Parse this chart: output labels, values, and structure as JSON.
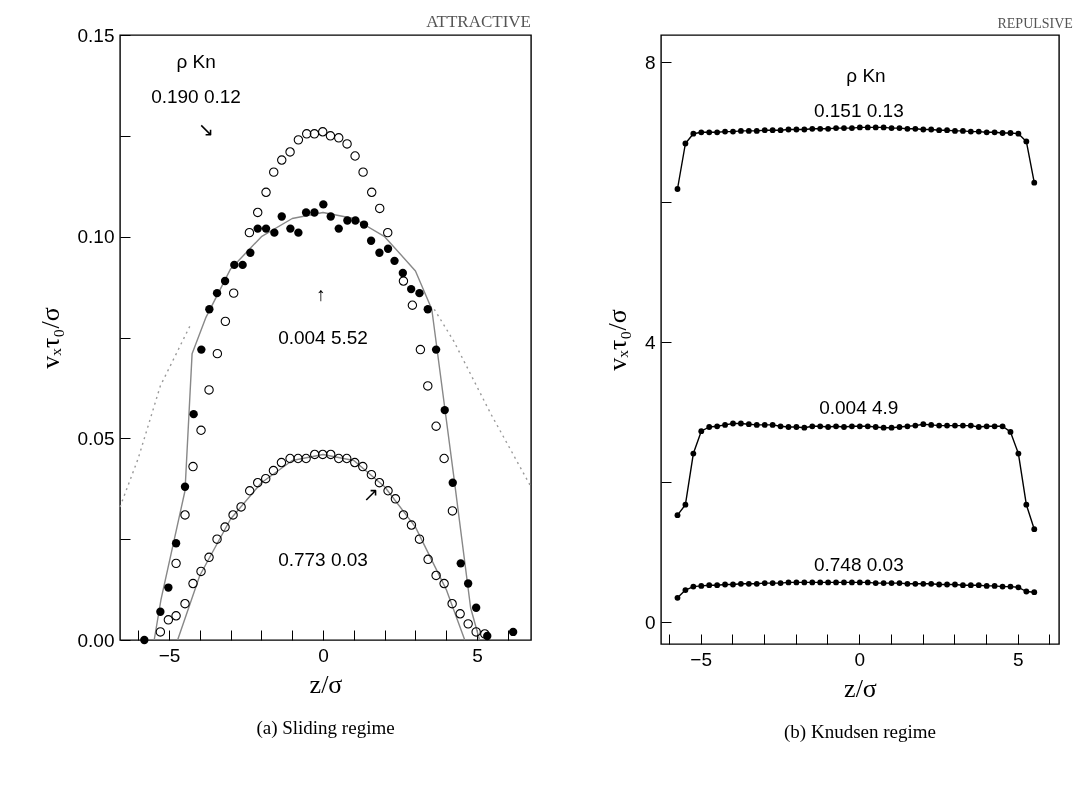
{
  "chart_data": [
    {
      "type": "scatter",
      "title": "(a) Sliding regime",
      "xlabel": "z/σ",
      "ylabel": "vₓτ₀/σ",
      "xlim": [
        -6.59,
        6.75
      ],
      "ylim": [
        0,
        0.15
      ],
      "xticks": [
        {
          "value": -6,
          "label": null
        },
        -5,
        {
          "value": -4,
          "label": null
        },
        {
          "value": -3,
          "label": null
        },
        {
          "value": -2,
          "label": null
        },
        {
          "value": -1,
          "label": null
        },
        0,
        {
          "value": 1,
          "label": null
        },
        {
          "value": 2,
          "label": null
        },
        {
          "value": 3,
          "label": null
        },
        {
          "value": 4,
          "label": null
        },
        5,
        {
          "value": 6,
          "label": null
        }
      ],
      "yticks": [
        {
          "value": 0,
          "label": "0.00"
        },
        {
          "value": 0.025,
          "label": null
        },
        0.05,
        {
          "value": 0.075,
          "label": null
        },
        {
          "value": 0.1,
          "label": "0.10"
        },
        {
          "value": 0.125,
          "label": null
        },
        0.15
      ],
      "grid": false,
      "series": [
        {
          "type": "line",
          "color": "#999999",
          "line_style": "dotted",
          "x": [
            -6.59,
            -6.0,
            -5.28,
            -4.31,
            0,
            3.61,
            4.25,
            5.45,
            6.75
          ],
          "values": [
            0.033,
            0.045,
            0.063,
            0.078,
            null,
            0.082,
            0.074,
            0.056,
            0.038
          ]
        },
        {
          "type": "line",
          "color": "#888888",
          "x": [
            -5.48,
            -5.26,
            -4.48,
            -4.25,
            -3.8,
            -3.0,
            -2.0,
            -1.0,
            0,
            1.0,
            2.0,
            3.0,
            3.53,
            4.27,
            4.79,
            5.08
          ],
          "values": [
            0,
            0.01,
            0.037,
            0.071,
            0.08,
            0.092,
            0.1,
            0.1045,
            0.106,
            0.1045,
            0.1,
            0.0915,
            0.082,
            0.039,
            0.008,
            0
          ]
        },
        {
          "type": "line",
          "color": "#888888",
          "x": [
            -4.72,
            -4.0,
            -3.0,
            -2.0,
            -1.0,
            0,
            1.0,
            2.0,
            3.0,
            4.0,
            4.6
          ],
          "values": [
            0,
            0.016,
            0.03,
            0.039,
            0.0445,
            0.046,
            0.0445,
            0.038,
            0.028,
            0.0125,
            0
          ]
        },
        {
          "type": "scatter",
          "color": "#000000",
          "x": [
            -4.77,
            -4.48,
            -4.22,
            -3.96,
            -3.7,
            -3.43,
            -3.17,
            -2.9,
            -2.39,
            -2.12,
            -1.85,
            -1.6,
            -1.34,
            -1.07,
            -0.8,
            -0.53,
            -0.28,
            -0.01,
            0.24,
            0.51,
            0.78,
            1.04,
            1.3,
            1.58,
            1.84,
            2.1,
            2.61,
            2.9,
            3.16,
            3.4,
            3.67,
            3.93,
            4.2
          ],
          "values": [
            0.019,
            0.031,
            0.043,
            0.052,
            0.062,
            0.071,
            0.079,
            0.086,
            0.101,
            0.106,
            0.111,
            0.116,
            0.119,
            0.121,
            0.124,
            0.1255,
            0.1255,
            0.126,
            0.125,
            0.1245,
            0.123,
            0.12,
            0.116,
            0.111,
            0.107,
            0.101,
            0.089,
            0.083,
            0.072,
            0.063,
            0.053,
            0.045,
            0.032
          ]
        },
        {
          "type": "scatter",
          "color": "#000000",
          "marker": "circle",
          "x": [
            -5.8,
            -5.28,
            -5.02,
            -4.77,
            -4.48,
            -4.2,
            -3.95,
            -3.69,
            -3.44,
            -3.18,
            -2.88,
            -2.61,
            -2.36,
            -2.12,
            -1.85,
            -1.58,
            -1.34,
            -1.06,
            -0.8,
            -0.55,
            -0.28,
            0.01,
            0.25,
            0.51,
            0.79,
            1.05,
            1.33,
            1.56,
            1.83,
            2.11,
            2.32,
            2.59,
            2.86,
            3.13,
            3.4,
            3.67,
            3.95,
            4.21,
            4.47,
            4.71,
            4.97,
            5.33,
            6.17
          ],
          "values": [
            0,
            0.007,
            0.013,
            0.024,
            0.038,
            0.056,
            0.072,
            0.082,
            0.086,
            0.089,
            0.093,
            0.093,
            0.096,
            0.102,
            0.102,
            0.101,
            0.105,
            0.102,
            0.101,
            0.106,
            0.106,
            0.108,
            0.105,
            0.102,
            0.104,
            0.104,
            0.103,
            0.099,
            0.096,
            0.097,
            0.094,
            0.091,
            0.087,
            0.086,
            0.082,
            0.072,
            0.057,
            0.039,
            0.019,
            0.014,
            0.008,
            0.001,
            0.002
          ]
        },
        {
          "type": "scatter",
          "color": "#000000",
          "x": [
            -5.28,
            -5.02,
            -4.77,
            -4.48,
            -4.22,
            -3.96,
            -3.7,
            -3.44,
            -3.18,
            -2.92,
            -2.66,
            -2.38,
            -2.12,
            -1.86,
            -1.61,
            -1.35,
            -1.07,
            -0.81,
            -0.55,
            -0.27,
            -0.01,
            0.25,
            0.51,
            0.77,
            1.03,
            1.29,
            1.57,
            1.83,
            2.11,
            2.35,
            2.61,
            2.87,
            3.13,
            3.41,
            3.67,
            3.93,
            4.19,
            4.45,
            4.71,
            4.97,
            5.25
          ],
          "values": [
            0.002,
            0.005,
            0.006,
            0.009,
            0.014,
            0.017,
            0.0205,
            0.025,
            0.028,
            0.031,
            0.033,
            0.037,
            0.039,
            0.04,
            0.042,
            0.044,
            0.045,
            0.045,
            0.045,
            0.046,
            0.046,
            0.046,
            0.045,
            0.045,
            0.044,
            0.043,
            0.041,
            0.039,
            0.037,
            0.035,
            0.031,
            0.0285,
            0.025,
            0.02,
            0.016,
            0.014,
            0.009,
            0.0065,
            0.004,
            0.002,
            0.0015
          ]
        }
      ],
      "annotations": [
        "ATTRACTIVE",
        "ρ    Kn",
        "0.190  0.12",
        "↘",
        "↑",
        "0.004  5.52",
        "↗",
        "0.773  0.03"
      ]
    },
    {
      "type": "line",
      "title": "(b) Knudsen regime",
      "xlabel": "z/σ",
      "ylabel": "vₓτ₀/σ",
      "xlim": [
        -6.25,
        6.3
      ],
      "ylim": [
        -0.31,
        8.39
      ],
      "xticks": [
        {
          "value": -6,
          "label": null
        },
        -5,
        {
          "value": -4,
          "label": null
        },
        {
          "value": -3,
          "label": null
        },
        {
          "value": -2,
          "label": null
        },
        {
          "value": -1,
          "label": null
        },
        0,
        {
          "value": 1,
          "label": null
        },
        {
          "value": 2,
          "label": null
        },
        {
          "value": 3,
          "label": null
        },
        {
          "value": 4,
          "label": null
        },
        5,
        {
          "value": 6,
          "label": null
        }
      ],
      "yticks": [
        0,
        {
          "value": 2,
          "label": null
        },
        4,
        {
          "value": 6,
          "label": null
        },
        8
      ],
      "grid": false,
      "marker": "circle",
      "line_style": "solid",
      "x": [
        -5.73,
        -5.48,
        -5.23,
        -4.98,
        -4.73,
        -4.48,
        -4.23,
        -3.98,
        -3.73,
        -3.48,
        -3.23,
        -2.98,
        -2.73,
        -2.48,
        -2.23,
        -1.98,
        -1.73,
        -1.48,
        -1.23,
        -0.98,
        -0.73,
        -0.48,
        -0.23,
        0.02,
        0.27,
        0.52,
        0.77,
        1.02,
        1.27,
        1.52,
        1.77,
        2.02,
        2.27,
        2.52,
        2.77,
        3.02,
        3.27,
        3.52,
        3.77,
        4.02,
        4.27,
        4.52,
        4.77,
        5.02,
        5.27,
        5.52
      ],
      "series": [
        {
          "color": "#000000",
          "values": [
            6.19,
            6.84,
            6.98,
            7.0,
            7.0,
            7.0,
            7.01,
            7.01,
            7.02,
            7.02,
            7.02,
            7.03,
            7.03,
            7.03,
            7.04,
            7.04,
            7.04,
            7.05,
            7.05,
            7.05,
            7.06,
            7.06,
            7.06,
            7.07,
            7.07,
            7.07,
            7.07,
            7.06,
            7.06,
            7.05,
            7.05,
            7.04,
            7.04,
            7.03,
            7.03,
            7.02,
            7.02,
            7.01,
            7.01,
            7.0,
            7.0,
            6.99,
            6.99,
            6.98,
            6.87,
            6.28
          ]
        },
        {
          "color": "#000000",
          "values": [
            1.53,
            1.68,
            2.41,
            2.73,
            2.79,
            2.8,
            2.82,
            2.84,
            2.84,
            2.83,
            2.82,
            2.82,
            2.82,
            2.8,
            2.79,
            2.79,
            2.78,
            2.8,
            2.8,
            2.79,
            2.8,
            2.79,
            2.8,
            2.8,
            2.8,
            2.79,
            2.78,
            2.78,
            2.79,
            2.8,
            2.81,
            2.83,
            2.82,
            2.81,
            2.81,
            2.81,
            2.81,
            2.81,
            2.79,
            2.8,
            2.8,
            2.8,
            2.72,
            2.41,
            1.68,
            1.33
          ]
        },
        {
          "color": "#000000",
          "values": [
            0.35,
            0.46,
            0.51,
            0.52,
            0.53,
            0.53,
            0.54,
            0.54,
            0.55,
            0.55,
            0.55,
            0.56,
            0.56,
            0.56,
            0.57,
            0.57,
            0.57,
            0.57,
            0.57,
            0.57,
            0.57,
            0.57,
            0.57,
            0.57,
            0.57,
            0.56,
            0.56,
            0.56,
            0.56,
            0.55,
            0.55,
            0.55,
            0.55,
            0.54,
            0.54,
            0.54,
            0.53,
            0.53,
            0.53,
            0.52,
            0.52,
            0.51,
            0.51,
            0.5,
            0.44,
            0.43
          ]
        }
      ],
      "annotations": [
        "REPULSIVE",
        "ρ   Kn",
        "0.151  0.13",
        "0.004  4.9",
        "0.748  0.03"
      ]
    }
  ]
}
